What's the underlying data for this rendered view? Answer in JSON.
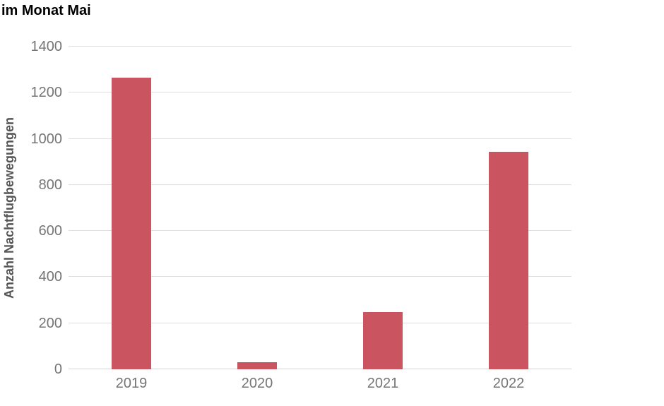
{
  "header": {
    "title": "im Monat Mai"
  },
  "chart_data": {
    "type": "bar",
    "title": "im Monat Mai",
    "categories": [
      "2019",
      "2020",
      "2021",
      "2022"
    ],
    "values": [
      1265,
      30,
      247,
      945
    ],
    "xlabel": "",
    "ylabel": "Anzahl Nachtflugbewegungen",
    "ylim": [
      0,
      1400
    ],
    "yticks": [
      0,
      200,
      400,
      600,
      800,
      1000,
      1200,
      1400
    ],
    "grid": "horizontal",
    "legend_position": "none",
    "colors": {
      "bar": "#ca5560",
      "title_text": "#000000",
      "axis_label_text": "#555555",
      "tick_text": "#757575",
      "gridline": "#dedede",
      "zero_line": "#d4d4d4",
      "background": "#ffffff"
    }
  }
}
